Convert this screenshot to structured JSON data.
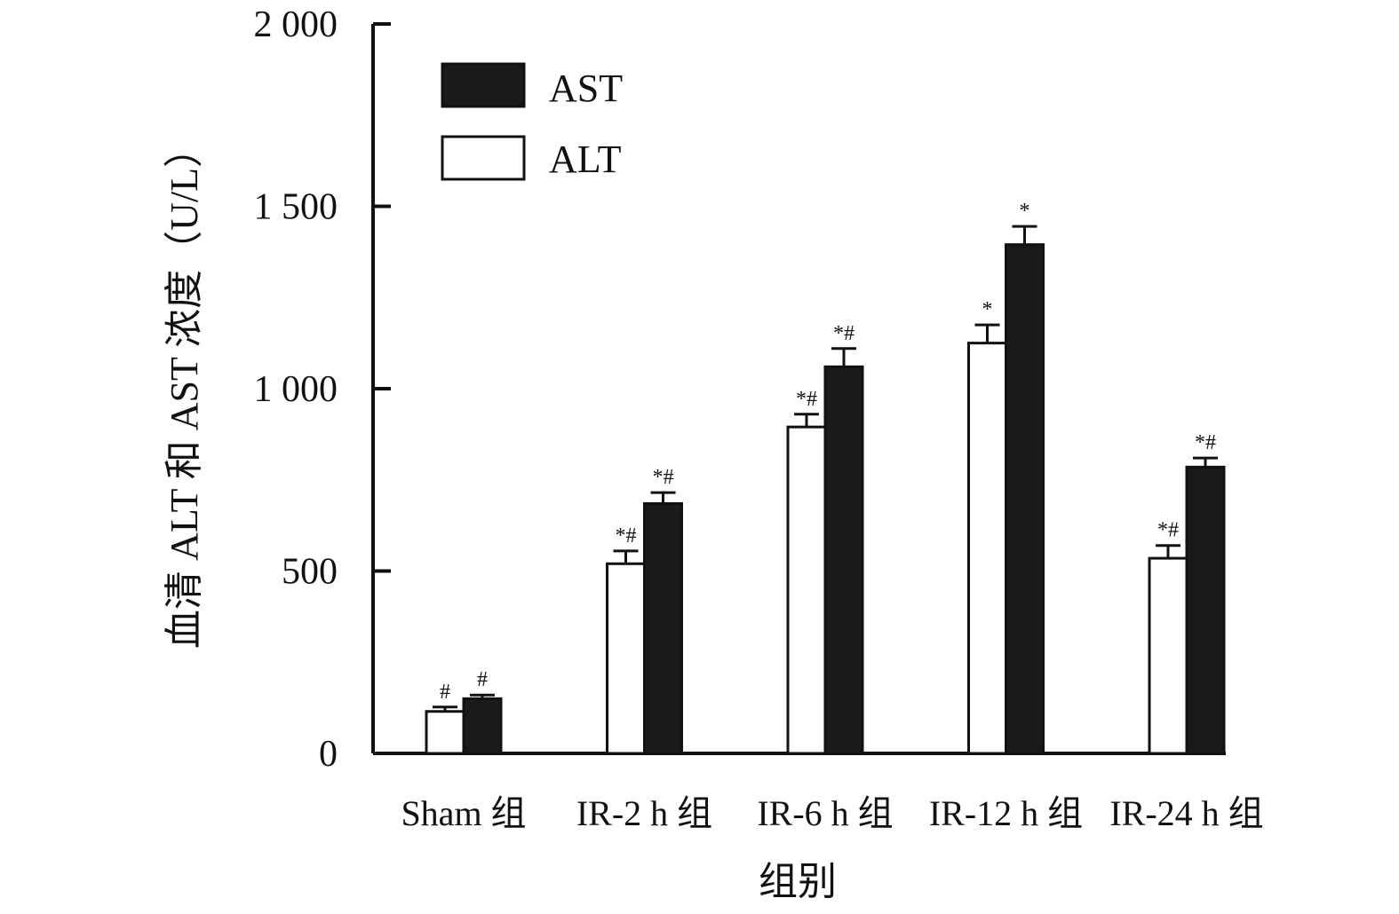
{
  "chart_data": {
    "type": "bar",
    "title": "",
    "xlabel": "组别",
    "ylabel": "血清 ALT 和 AST 浓度（U/L）",
    "ylim": [
      0,
      2000
    ],
    "yticks": [
      0,
      500,
      1000,
      1500,
      2000
    ],
    "ytick_labels": [
      "0",
      "500",
      "1 000",
      "1 500",
      "2 000"
    ],
    "categories": [
      "Sham 组",
      "IR-2 h 组",
      "IR-6 h 组",
      "IR-12 h 组",
      "IR-24 h 组"
    ],
    "legend_position": "top-left",
    "grid": false,
    "series": [
      {
        "name": "ALT",
        "color": "#ffffff",
        "values": [
          115,
          520,
          895,
          1125,
          535
        ],
        "errors": [
          12,
          35,
          35,
          50,
          35
        ],
        "annotations": [
          "#",
          "*#",
          "*#",
          "*",
          "*#"
        ]
      },
      {
        "name": "AST",
        "color": "#1a1a1a",
        "values": [
          150,
          685,
          1060,
          1395,
          785
        ],
        "errors": [
          10,
          30,
          50,
          50,
          25
        ],
        "annotations": [
          "#",
          "*#",
          "*#",
          "*",
          "*#"
        ]
      }
    ]
  }
}
